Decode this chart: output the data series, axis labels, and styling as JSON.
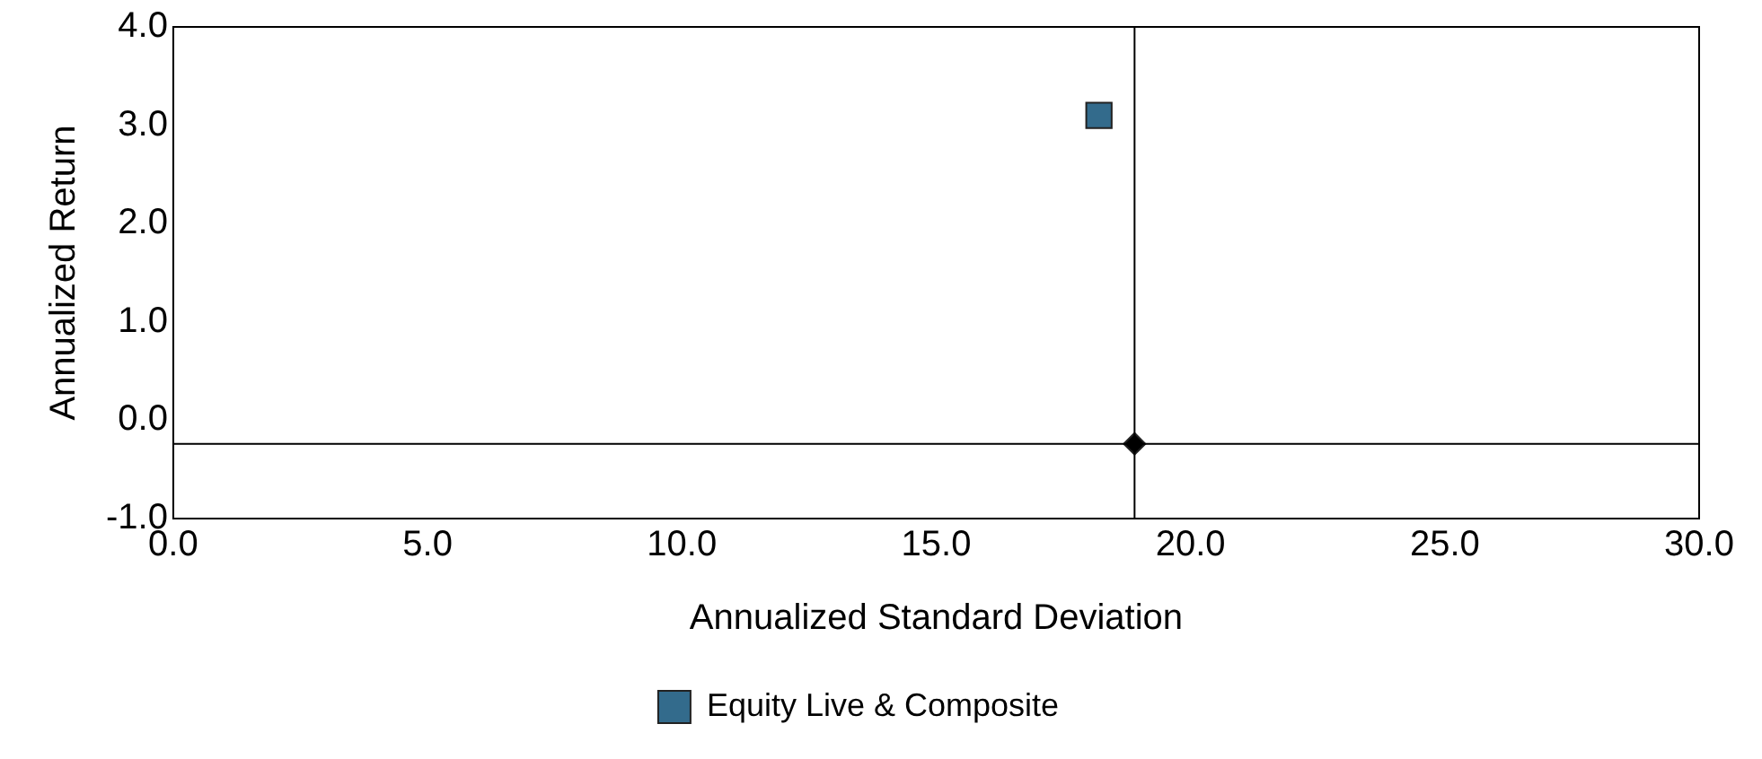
{
  "chart_data": {
    "type": "scatter",
    "xlabel": "Annualized Standard Deviation",
    "ylabel": "Annualized Return",
    "xlim": [
      0,
      30
    ],
    "xticks": [
      {
        "value": 0,
        "label": "0.0"
      },
      {
        "value": 5,
        "label": "5.0"
      },
      {
        "value": 10,
        "label": "10.0"
      },
      {
        "value": 15,
        "label": "15.0"
      },
      {
        "value": 20,
        "label": "20.0"
      },
      {
        "value": 25,
        "label": "25.0"
      },
      {
        "value": 30,
        "label": "30.0"
      }
    ],
    "ylim": [
      -1,
      4
    ],
    "yticks": [
      {
        "value": -1,
        "label": "-1.0"
      },
      {
        "value": 0,
        "label": "0.0"
      },
      {
        "value": 1,
        "label": "1.0"
      },
      {
        "value": 2,
        "label": "2.0"
      },
      {
        "value": 3,
        "label": "3.0"
      },
      {
        "value": 4,
        "label": "4.0"
      }
    ],
    "series": [
      {
        "name": "Equity Live & Composite",
        "color": "#336b8c",
        "marker": "square",
        "x": [
          18.2
        ],
        "values": [
          3.1
        ]
      },
      {
        "color": "#000000",
        "marker": "diamond",
        "x": [
          18.9
        ],
        "values": [
          -0.24
        ]
      }
    ],
    "ref_lines": [
      {
        "axis": "x",
        "value": 18.9,
        "color": "#000000"
      },
      {
        "axis": "y",
        "value": -0.24,
        "color": "#000000"
      }
    ],
    "grid": false,
    "legend": "bottom"
  }
}
